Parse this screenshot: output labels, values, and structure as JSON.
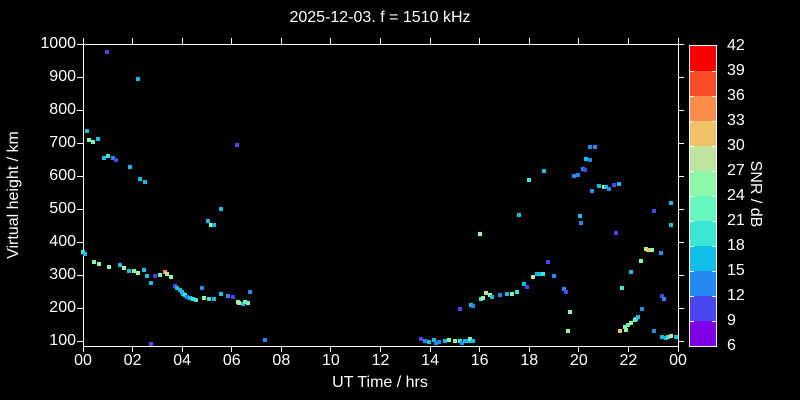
{
  "title": "2025-12-03. f = 1510 kHz",
  "axes": {
    "x": {
      "label": "UT Time / hrs",
      "tick_labels": [
        "00",
        "02",
        "04",
        "06",
        "08",
        "10",
        "12",
        "14",
        "16",
        "18",
        "20",
        "22",
        "00"
      ],
      "min_hours": 0,
      "max_hours": 24
    },
    "y": {
      "label": "Virtual height / km",
      "tick_values": [
        100,
        200,
        300,
        400,
        500,
        600,
        700,
        800,
        900,
        1000
      ],
      "min": 85,
      "max": 1000
    }
  },
  "colorbar": {
    "label": "SNR / dB",
    "tick_values": [
      6,
      9,
      12,
      15,
      18,
      21,
      24,
      27,
      30,
      33,
      36,
      39,
      42
    ],
    "segment_colors_low_to_high": [
      "#8000E8",
      "#4A46F4",
      "#2589F5",
      "#10BFE8",
      "#3CE5D4",
      "#66F9BE",
      "#8FF7A8",
      "#BEE5A0",
      "#EFC266",
      "#FB8D4B",
      "#F94D29",
      "#FA0000"
    ]
  },
  "colors": {
    "background": "#000000",
    "foreground": "#FFFFFF"
  },
  "chart_data": {
    "type": "scatter",
    "title": "2025-12-03. f = 1510 kHz",
    "xlabel": "UT Time / hrs",
    "ylabel": "Virtual height / km",
    "zlabel": "SNR / dB",
    "xlim": [
      0,
      24
    ],
    "ylim": [
      85,
      1000
    ],
    "zlim": [
      6,
      42
    ],
    "legend": "discrete colorbar, 3 dB steps",
    "grid": false,
    "points_time_height_snr": [
      [
        0.95,
        975,
        10
      ],
      [
        2.2,
        895,
        16
      ],
      [
        0.15,
        735,
        16
      ],
      [
        0.25,
        710,
        25
      ],
      [
        0.4,
        703,
        22
      ],
      [
        0.6,
        712,
        16
      ],
      [
        0.85,
        655,
        16
      ],
      [
        1.0,
        661,
        19
      ],
      [
        1.2,
        655,
        13
      ],
      [
        1.35,
        649,
        10
      ],
      [
        1.9,
        627,
        16
      ],
      [
        2.3,
        591,
        16
      ],
      [
        2.5,
        582,
        16
      ],
      [
        6.2,
        694,
        10
      ],
      [
        5.55,
        500,
        16
      ],
      [
        5.05,
        464,
        16
      ],
      [
        5.15,
        452,
        25
      ],
      [
        5.3,
        452,
        16
      ],
      [
        0.0,
        370,
        19
      ],
      [
        0.1,
        364,
        16
      ],
      [
        0.45,
        340,
        25
      ],
      [
        0.65,
        334,
        25
      ],
      [
        1.05,
        325,
        25
      ],
      [
        1.5,
        330,
        16
      ],
      [
        1.65,
        321,
        25
      ],
      [
        1.85,
        312,
        16
      ],
      [
        2.05,
        312,
        25
      ],
      [
        2.2,
        306,
        25
      ],
      [
        2.45,
        315,
        16
      ],
      [
        2.6,
        297,
        16
      ],
      [
        2.75,
        276,
        16
      ],
      [
        2.9,
        297,
        10
      ],
      [
        3.1,
        300,
        22
      ],
      [
        3.3,
        309,
        34
      ],
      [
        3.4,
        303,
        28
      ],
      [
        3.55,
        294,
        25
      ],
      [
        3.7,
        267,
        10
      ],
      [
        3.8,
        261,
        16
      ],
      [
        3.9,
        255,
        16
      ],
      [
        4.0,
        249,
        16
      ],
      [
        4.05,
        242,
        16
      ],
      [
        4.1,
        239,
        19
      ],
      [
        4.2,
        233,
        13
      ],
      [
        4.3,
        230,
        16
      ],
      [
        4.45,
        227,
        19
      ],
      [
        4.55,
        224,
        19
      ],
      [
        4.8,
        261,
        13
      ],
      [
        4.9,
        230,
        25
      ],
      [
        5.1,
        227,
        19
      ],
      [
        5.3,
        227,
        16
      ],
      [
        5.55,
        242,
        16
      ],
      [
        5.85,
        236,
        13
      ],
      [
        6.05,
        233,
        10
      ],
      [
        6.25,
        218,
        25
      ],
      [
        6.3,
        215,
        28
      ],
      [
        6.45,
        212,
        16
      ],
      [
        6.55,
        218,
        22
      ],
      [
        6.65,
        215,
        25
      ],
      [
        6.75,
        249,
        13
      ],
      [
        2.75,
        91,
        10
      ],
      [
        7.35,
        103,
        13
      ],
      [
        13.65,
        106,
        10
      ],
      [
        13.8,
        100,
        13
      ],
      [
        13.95,
        97,
        16
      ],
      [
        14.15,
        103,
        16
      ],
      [
        14.25,
        94,
        13
      ],
      [
        14.35,
        97,
        13
      ],
      [
        14.6,
        100,
        16
      ],
      [
        14.75,
        103,
        25
      ],
      [
        15.0,
        100,
        25
      ],
      [
        15.2,
        100,
        19
      ],
      [
        15.3,
        94,
        13
      ],
      [
        15.4,
        100,
        16
      ],
      [
        15.55,
        100,
        16
      ],
      [
        15.6,
        106,
        25
      ],
      [
        15.75,
        100,
        16
      ],
      [
        15.2,
        197,
        10
      ],
      [
        15.65,
        209,
        16
      ],
      [
        15.75,
        206,
        13
      ],
      [
        16.05,
        227,
        19
      ],
      [
        16.15,
        230,
        25
      ],
      [
        16.25,
        245,
        28
      ],
      [
        16.4,
        239,
        25
      ],
      [
        16.5,
        233,
        16
      ],
      [
        16.8,
        239,
        13
      ],
      [
        17.1,
        242,
        16
      ],
      [
        17.3,
        242,
        25
      ],
      [
        17.5,
        248,
        19
      ],
      [
        17.8,
        273,
        16
      ],
      [
        16.0,
        424,
        25
      ],
      [
        17.6,
        482,
        16
      ],
      [
        17.9,
        264,
        10
      ],
      [
        18.15,
        294,
        28
      ],
      [
        18.3,
        303,
        16
      ],
      [
        18.4,
        303,
        16
      ],
      [
        18.55,
        303,
        19
      ],
      [
        18.75,
        339,
        10
      ],
      [
        19.0,
        297,
        13
      ],
      [
        19.4,
        258,
        13
      ],
      [
        19.5,
        249,
        10
      ],
      [
        19.65,
        188,
        25
      ],
      [
        19.55,
        130,
        25
      ],
      [
        18.0,
        588,
        19
      ],
      [
        18.6,
        615,
        16
      ],
      [
        19.8,
        600,
        13
      ],
      [
        19.95,
        603,
        13
      ],
      [
        20.15,
        621,
        13
      ],
      [
        20.25,
        618,
        10
      ],
      [
        20.3,
        652,
        16
      ],
      [
        20.45,
        648,
        13
      ],
      [
        20.45,
        688,
        13
      ],
      [
        20.65,
        688,
        13
      ],
      [
        20.05,
        479,
        16
      ],
      [
        20.1,
        458,
        13
      ],
      [
        20.55,
        555,
        13
      ],
      [
        20.8,
        570,
        16
      ],
      [
        21.0,
        567,
        25
      ],
      [
        21.1,
        567,
        16
      ],
      [
        21.2,
        561,
        13
      ],
      [
        21.4,
        573,
        10
      ],
      [
        21.6,
        576,
        16
      ],
      [
        21.5,
        427,
        10
      ],
      [
        23.05,
        494,
        10
      ],
      [
        23.7,
        518,
        16
      ],
      [
        23.7,
        452,
        16
      ],
      [
        22.1,
        309,
        16
      ],
      [
        21.75,
        261,
        19
      ],
      [
        22.5,
        342,
        25
      ],
      [
        22.7,
        379,
        28
      ],
      [
        22.8,
        376,
        31
      ],
      [
        22.95,
        376,
        25
      ],
      [
        23.3,
        367,
        13
      ],
      [
        23.35,
        236,
        10
      ],
      [
        23.45,
        227,
        13
      ],
      [
        22.55,
        197,
        13
      ],
      [
        21.65,
        130,
        31
      ],
      [
        21.85,
        142,
        25
      ],
      [
        21.9,
        133,
        25
      ],
      [
        22.0,
        149,
        22
      ],
      [
        22.1,
        155,
        25
      ],
      [
        22.25,
        164,
        25
      ],
      [
        22.3,
        167,
        19
      ],
      [
        22.4,
        173,
        16
      ],
      [
        23.05,
        130,
        13
      ],
      [
        23.35,
        112,
        16
      ],
      [
        23.5,
        109,
        16
      ],
      [
        23.6,
        112,
        19
      ],
      [
        23.7,
        115,
        28
      ],
      [
        23.9,
        112,
        16
      ]
    ]
  }
}
